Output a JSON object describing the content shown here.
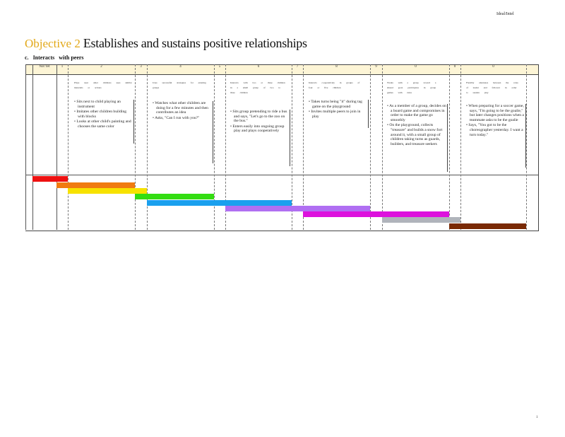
{
  "header": {
    "tag": "Ideal/Intel"
  },
  "title": {
    "objective": "Objective 2",
    "text": "Establishes and sustains positive relationships"
  },
  "subtitle": {
    "letter": "c.",
    "text": "Interacts",
    "text2": "with peers"
  },
  "page_number": "1",
  "columns": [
    {
      "label": "Not Yet"
    },
    {
      "label": "1"
    },
    {
      "label": "2"
    },
    {
      "label": "3"
    },
    {
      "label": "4"
    },
    {
      "label": "5"
    },
    {
      "label": "6"
    },
    {
      "label": "7"
    },
    {
      "label": "8"
    },
    {
      "label": "9"
    },
    {
      "label": "0"
    },
    {
      "label": "0"
    },
    {
      "label": "0"
    }
  ],
  "levels": [
    {
      "description": "Plays near other children; uses similar materials or actions",
      "examples": [
        "Sits next to child playing an instrument",
        "Imitates other children building with blocks",
        "Looks at other child's painting and chooses the same color"
      ]
    },
    {
      "description": "Uses successful strategies for entering groups",
      "examples": [
        "Watches what other children are doing for a few minutes and then contributes an idea",
        "Asks, \"Can I run with you?\""
      ]
    },
    {
      "description": "Interacts with two or three children in a small group of two to three children",
      "examples": [
        "Sits group pretending to ride a bus and says, \"Let's go to the zoo on the bus.\"",
        "Enters easily into ongoing group play and plays cooperatively"
      ]
    },
    {
      "description": "Interacts cooperatively in groups of four or five children",
      "examples": [
        "Takes turns being \"it\" during tag game on the playground",
        "Invites multiple peers to join in play"
      ]
    },
    {
      "description": "Works with a group toward a shared goal; participates in group games with rules",
      "examples": [
        "As a member of a group, decides on a board game and compromises in order to make the game go smoothly",
        "On the playground, collects \"treasure\" and builds a snow fort around it, with a small group of children taking turns as guards, builders, and treasure seekers"
      ]
    },
    {
      "description": "Flexibly alternates between the roles of leader and follower in order to sustain play",
      "examples": [
        "When preparing for a soccer game, says, \"I'm going to be the goalie,\" but later changes positions when a teammate asks to be the goalie",
        "Says, \"You got to be the choreographer yesterday. I want a turn today.\""
      ]
    }
  ],
  "color_bands": [
    {
      "name": "red",
      "color": "#ee1111"
    },
    {
      "name": "orange",
      "color": "#f07b10"
    },
    {
      "name": "yellow",
      "color": "#f7e200"
    },
    {
      "name": "green",
      "color": "#33dd11"
    },
    {
      "name": "blue",
      "color": "#1aa0ee"
    },
    {
      "name": "purple",
      "color": "#b06ff2"
    },
    {
      "name": "magenta",
      "color": "#dd11dd"
    },
    {
      "name": "gray",
      "color": "#b0b4bb"
    },
    {
      "name": "brown",
      "color": "#7a2a05"
    }
  ]
}
